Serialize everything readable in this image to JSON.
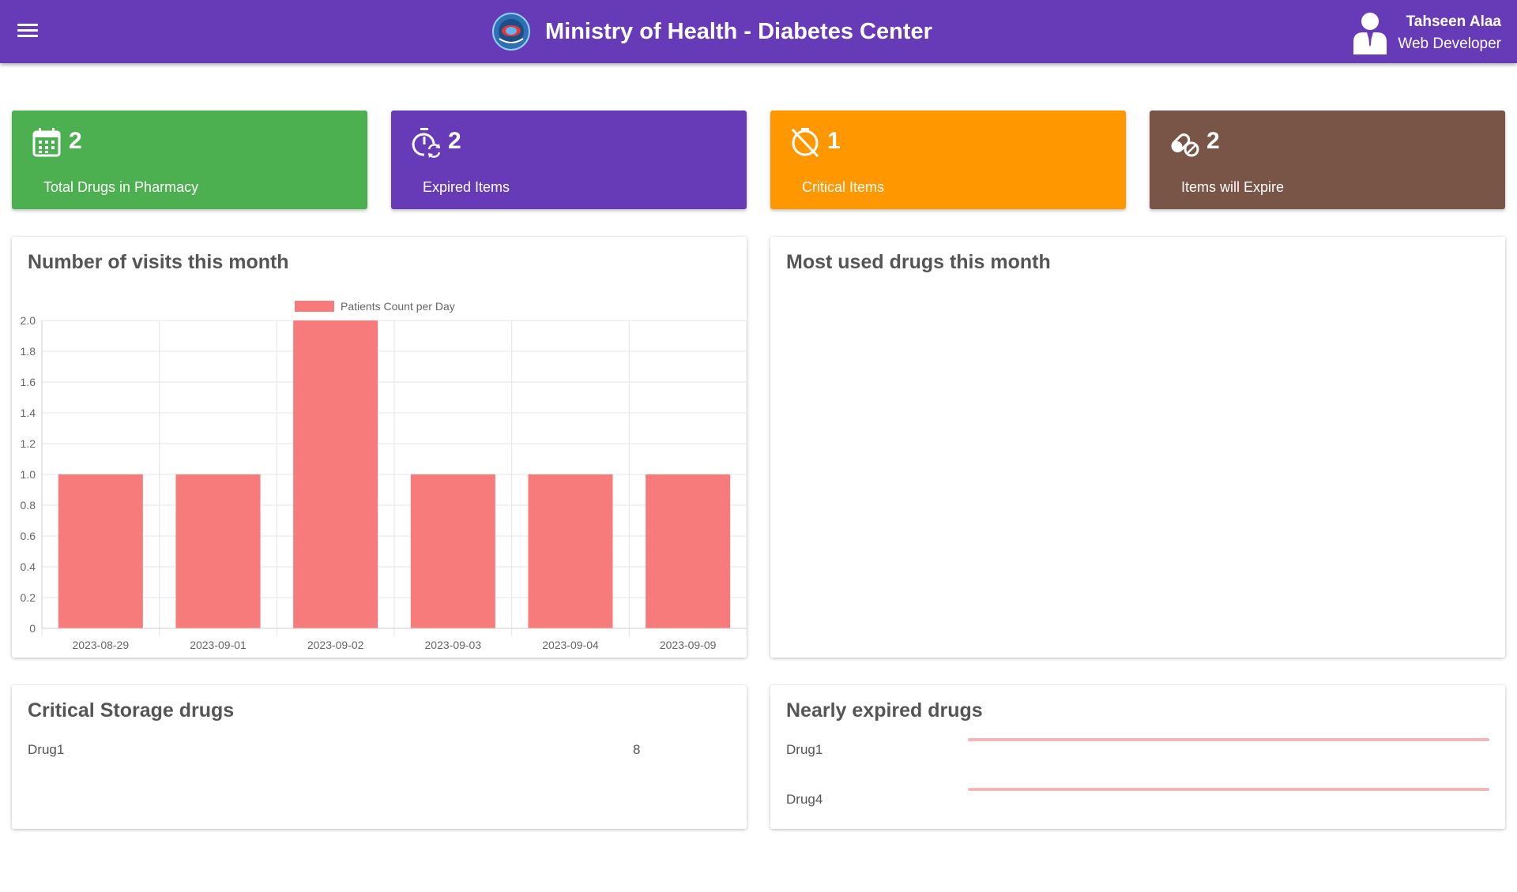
{
  "header": {
    "title": "Ministry of Health - Diabetes Center",
    "user_name": "Tahseen Alaa",
    "user_role": "Web Developer",
    "accent": "#673ab7"
  },
  "stats": [
    {
      "value": "2",
      "label": "Total Drugs in Pharmacy",
      "icon": "calendar-icon",
      "color": "#4caf50"
    },
    {
      "value": "2",
      "label": "Expired Items",
      "icon": "timer-sync-icon",
      "color": "#673ab7"
    },
    {
      "value": "1",
      "label": "Critical Items",
      "icon": "timer-off-icon",
      "color": "#ff9800"
    },
    {
      "value": "2",
      "label": "Items will Expire",
      "icon": "pills-icon",
      "color": "#795548"
    }
  ],
  "panels": {
    "visits_title": "Number of visits this month",
    "used_title": "Most used drugs this month",
    "critical_title": "Critical Storage drugs",
    "expired_title": "Nearly expired drugs"
  },
  "critical_drugs": [
    {
      "name": "Drug1",
      "count": "8"
    }
  ],
  "nearly_expired": [
    {
      "name": "Drug1"
    },
    {
      "name": "Drug4"
    }
  ],
  "chart_data": {
    "type": "bar",
    "categories": [
      "2023-08-29",
      "2023-09-01",
      "2023-09-02",
      "2023-09-03",
      "2023-09-04",
      "2023-09-09"
    ],
    "series": [
      {
        "name": "Patients Count per Day",
        "values": [
          1,
          1,
          2,
          1,
          1,
          1
        ],
        "color": "#f77b7b"
      }
    ],
    "ylim": [
      0,
      2
    ],
    "yticks": [
      "0",
      "0.2",
      "0.4",
      "0.6",
      "0.8",
      "1.0",
      "1.2",
      "1.4",
      "1.6",
      "1.8",
      "2.0"
    ],
    "grid": true,
    "legend": "top-center"
  }
}
